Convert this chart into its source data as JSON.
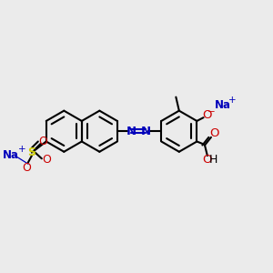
{
  "bg_color": "#ebebeb",
  "bond_color": "#000000",
  "azo_color": "#0000bb",
  "oxygen_color": "#cc0000",
  "na_color": "#0000bb",
  "s_color": "#cccc00",
  "figsize": [
    3.0,
    3.0
  ],
  "dpi": 100,
  "xlim": [
    0,
    10
  ],
  "ylim": [
    0,
    10
  ]
}
